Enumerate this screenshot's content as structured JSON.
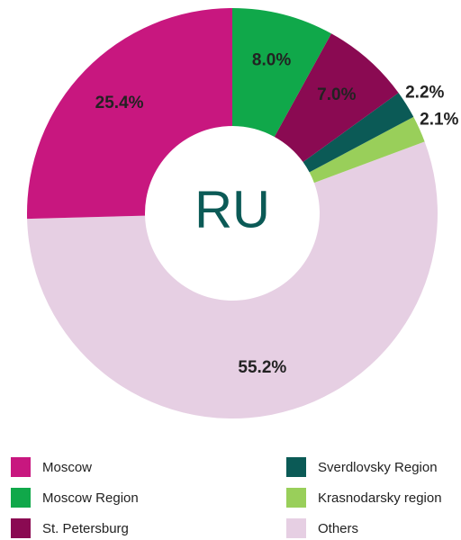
{
  "chart_data": {
    "type": "donut",
    "center_label": "RU",
    "categories": [
      "Moscow",
      "Moscow Region",
      "St. Petersburg",
      "Sverdlovsky Region",
      "Krasnodarsky region",
      "Others"
    ],
    "values": [
      25.4,
      8.0,
      7.0,
      2.2,
      2.1,
      55.2
    ],
    "value_labels": [
      "25.4%",
      "8.0%",
      "7.0%",
      "2.2%",
      "2.1%",
      "55.2%"
    ],
    "colors": [
      "#c8177f",
      "#10a84a",
      "#8a0a52",
      "#0b5a56",
      "#99cf5a",
      "#e6cfe3"
    ],
    "legend": "bottom"
  }
}
